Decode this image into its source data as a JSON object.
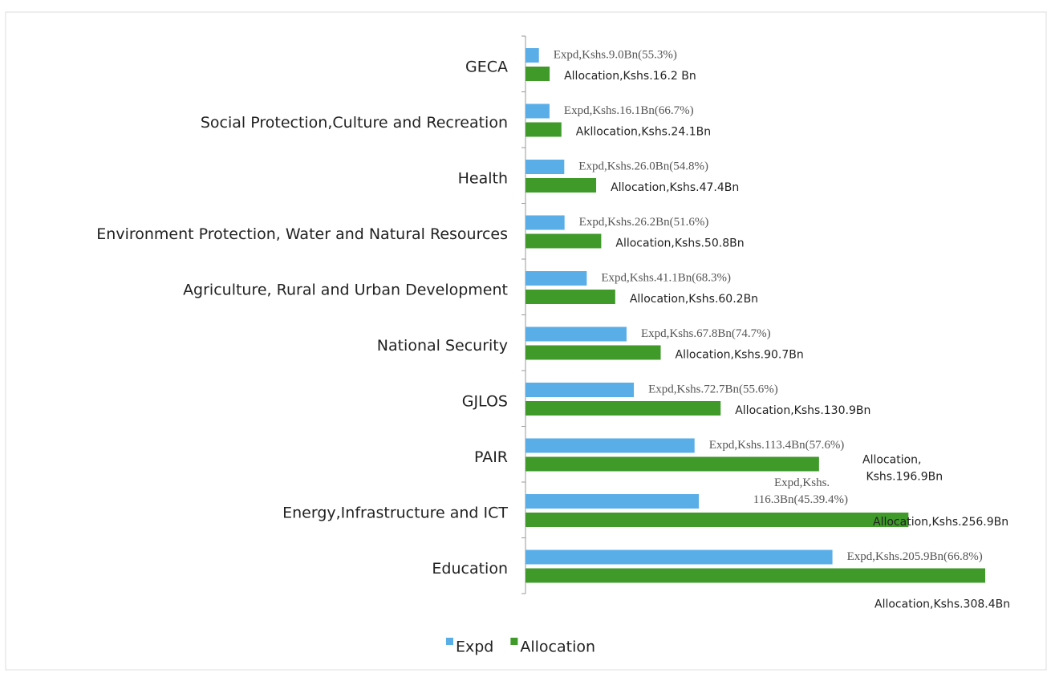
{
  "chart_data": {
    "type": "hbar",
    "categories": [
      "GECA",
      "Social Protection,Culture and Recreation",
      "Health",
      "Environment Protection, Water and Natural Resources",
      "Agriculture, Rural and Urban Development",
      "National Security",
      "GJLOS",
      "PAIR",
      "Energy,Infrastructure and ICT",
      "Education"
    ],
    "series": [
      {
        "name": "Expd",
        "color": "#5aaee8",
        "values": [
          9.0,
          16.1,
          26.0,
          26.2,
          41.1,
          67.8,
          72.7,
          113.4,
          116.3,
          205.9
        ],
        "value_labels": [
          "Expd,Kshs.9.0Bn(55.3%)",
          "Expd,Kshs.16.1Bn(66.7%)",
          "Expd,Kshs.26.0Bn(54.8%)",
          "Expd,Kshs.26.2Bn(51.6%)",
          "Expd,Kshs.41.1Bn(68.3%)",
          "Expd,Kshs.67.8Bn(74.7%)",
          "Expd,Kshs.72.7Bn(55.6%)",
          "Expd,Kshs.113.4Bn(57.6%)",
          "Expd,Kshs.\n116.3Bn(45.39.4%)",
          "Expd,Kshs.205.9Bn(66.8%)"
        ]
      },
      {
        "name": "Allocation",
        "color": "#3f9a2a",
        "values": [
          16.2,
          24.1,
          47.4,
          50.8,
          60.2,
          90.7,
          130.9,
          196.9,
          256.9,
          308.4
        ],
        "value_labels": [
          "Allocation,Kshs.16.2 Bn",
          "Akllocation,Kshs.24.1Bn",
          "Allocation,Kshs.47.4Bn",
          "Allocation,Kshs.50.8Bn",
          "Allocation,Kshs.60.2Bn",
          "Allocation,Kshs.90.7Bn",
          "Allocation,Kshs.130.9Bn",
          "Allocation,\nKshs.196.9Bn",
          "Allocation,Kshs.256.9Bn",
          "Allocation,Kshs.308.4Bn"
        ]
      }
    ],
    "xlim": [
      0,
      310
    ]
  }
}
